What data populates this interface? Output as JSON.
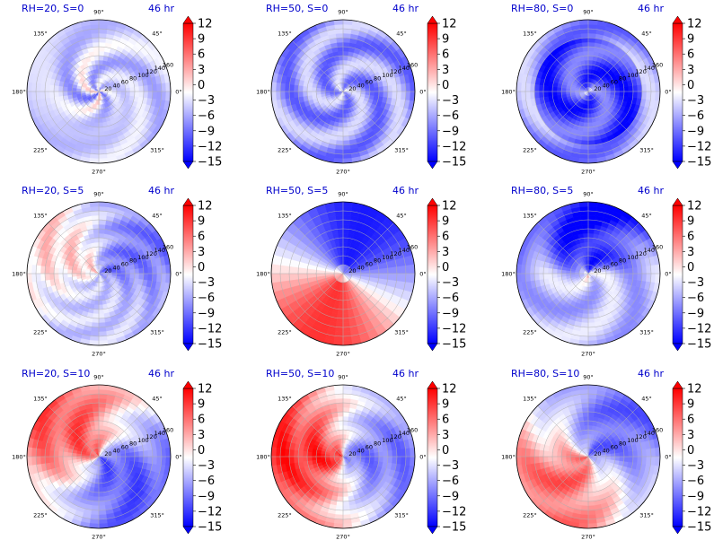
{
  "figure": {
    "time_label": "46 hr",
    "angle_labels": [
      "90°",
      "45°",
      "0°",
      "315°",
      "270°",
      "225°",
      "180°",
      "135°"
    ],
    "radial_ticks": [
      20,
      40,
      60,
      80,
      100,
      120,
      140,
      160
    ],
    "colorbar_ticks": [
      12,
      9,
      6,
      3,
      0,
      -3,
      -6,
      -9,
      -12,
      -15
    ],
    "colorbar_range": [
      -15,
      12
    ],
    "colors": {
      "title": "#0000cc",
      "positive": "#ff0000",
      "negative": "#0000ff",
      "neutral": "#ffffff"
    }
  },
  "chart_data": [
    {
      "type": "heatmap",
      "title": "RH=20, S=0",
      "time": "46 hr",
      "projection": "polar",
      "r_range": [
        0,
        160
      ],
      "dominant_anomaly": "mixed, weak negative"
    },
    {
      "type": "heatmap",
      "title": "RH=50, S=0",
      "time": "46 hr",
      "projection": "polar",
      "r_range": [
        0,
        160
      ],
      "dominant_anomaly": "negative"
    },
    {
      "type": "heatmap",
      "title": "RH=80, S=0",
      "time": "46 hr",
      "projection": "polar",
      "r_range": [
        0,
        160
      ],
      "dominant_anomaly": "strong negative"
    },
    {
      "type": "heatmap",
      "title": "RH=20, S=5",
      "time": "46 hr",
      "projection": "polar",
      "r_range": [
        0,
        160
      ],
      "dominant_anomaly": "positive west, negative east"
    },
    {
      "type": "heatmap",
      "title": "RH=50, S=5",
      "time": "46 hr",
      "projection": "polar",
      "r_range": [
        0,
        160
      ],
      "dominant_anomaly": "negative north, positive southwest"
    },
    {
      "type": "heatmap",
      "title": "RH=80, S=5",
      "time": "46 hr",
      "projection": "polar",
      "r_range": [
        0,
        160
      ],
      "dominant_anomaly": "strong negative north"
    },
    {
      "type": "heatmap",
      "title": "RH=20, S=10",
      "time": "46 hr",
      "projection": "polar",
      "r_range": [
        0,
        160
      ],
      "dominant_anomaly": "strong positive northwest, negative southeast"
    },
    {
      "type": "heatmap",
      "title": "RH=50, S=10",
      "time": "46 hr",
      "projection": "polar",
      "r_range": [
        0,
        160
      ],
      "dominant_anomaly": "positive west, strong negative east"
    },
    {
      "type": "heatmap",
      "title": "RH=80, S=10",
      "time": "46 hr",
      "projection": "polar",
      "r_range": [
        0,
        160
      ],
      "dominant_anomaly": "positive southwest, strong negative northeast"
    }
  ]
}
